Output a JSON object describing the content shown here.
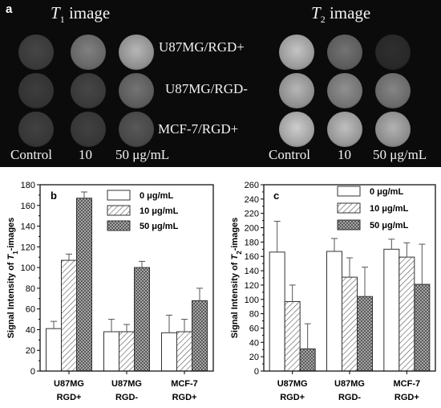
{
  "panel_a": {
    "letter": "a",
    "t1_title": "T",
    "t1_sub": "1",
    "t1_rest": " image",
    "t2_title": "T",
    "t2_sub": "2",
    "t2_rest": " image",
    "rows": [
      "U87MG/RGD+",
      "U87MG/RGD-",
      "MCF-7/RGD+"
    ],
    "col_labels": [
      "Control",
      "10",
      "50  μg/mL"
    ],
    "t1_brightness": [
      [
        0.22,
        0.48,
        0.72
      ],
      [
        0.18,
        0.22,
        0.42
      ],
      [
        0.2,
        0.2,
        0.3
      ]
    ],
    "t2_brightness": [
      [
        0.78,
        0.42,
        0.12
      ],
      [
        0.72,
        0.55,
        0.5
      ],
      [
        0.82,
        0.76,
        0.7
      ]
    ]
  },
  "chart_data": [
    {
      "type": "bar",
      "panel_letter": "b",
      "ylabel_pre": "Signal Intensity of ",
      "ylabel_it": "T",
      "ylabel_sub": "1",
      "ylabel_post": "-images",
      "ylim": [
        0,
        180
      ],
      "yticks": [
        0,
        20,
        40,
        60,
        80,
        100,
        120,
        140,
        160,
        180
      ],
      "categories": [
        [
          "U87MG",
          "RGD+"
        ],
        [
          "U87MG",
          "RGD-"
        ],
        [
          "MCF-7",
          "RGD+"
        ]
      ],
      "series": [
        {
          "name": "0   μg/mL",
          "values": [
            41,
            38,
            37
          ],
          "errors": [
            7,
            12,
            17
          ]
        },
        {
          "name": "10  μg/mL",
          "values": [
            107,
            38,
            38
          ],
          "errors": [
            6,
            7,
            12
          ]
        },
        {
          "name": "50  μg/mL",
          "values": [
            167,
            100,
            68
          ],
          "errors": [
            6,
            6,
            12
          ]
        }
      ]
    },
    {
      "type": "bar",
      "panel_letter": "c",
      "ylabel_pre": "Signal Intensity of ",
      "ylabel_it": "T",
      "ylabel_sub": "2",
      "ylabel_post": "-images",
      "ylim": [
        0,
        260
      ],
      "yticks": [
        0,
        20,
        40,
        60,
        80,
        100,
        120,
        140,
        160,
        180,
        200,
        220,
        240,
        260
      ],
      "categories": [
        [
          "U87MG",
          "RGD+"
        ],
        [
          "U87MG",
          "RGD-"
        ],
        [
          "MCF-7",
          "RGD+"
        ]
      ],
      "series": [
        {
          "name": "0   μg/mL",
          "values": [
            166,
            167,
            170
          ],
          "errors": [
            43,
            18,
            14
          ]
        },
        {
          "name": "10  μg/mL",
          "values": [
            97,
            131,
            159
          ],
          "errors": [
            23,
            27,
            20
          ]
        },
        {
          "name": "50  μg/mL",
          "values": [
            31,
            104,
            121
          ],
          "errors": [
            35,
            41,
            56
          ]
        }
      ]
    }
  ]
}
